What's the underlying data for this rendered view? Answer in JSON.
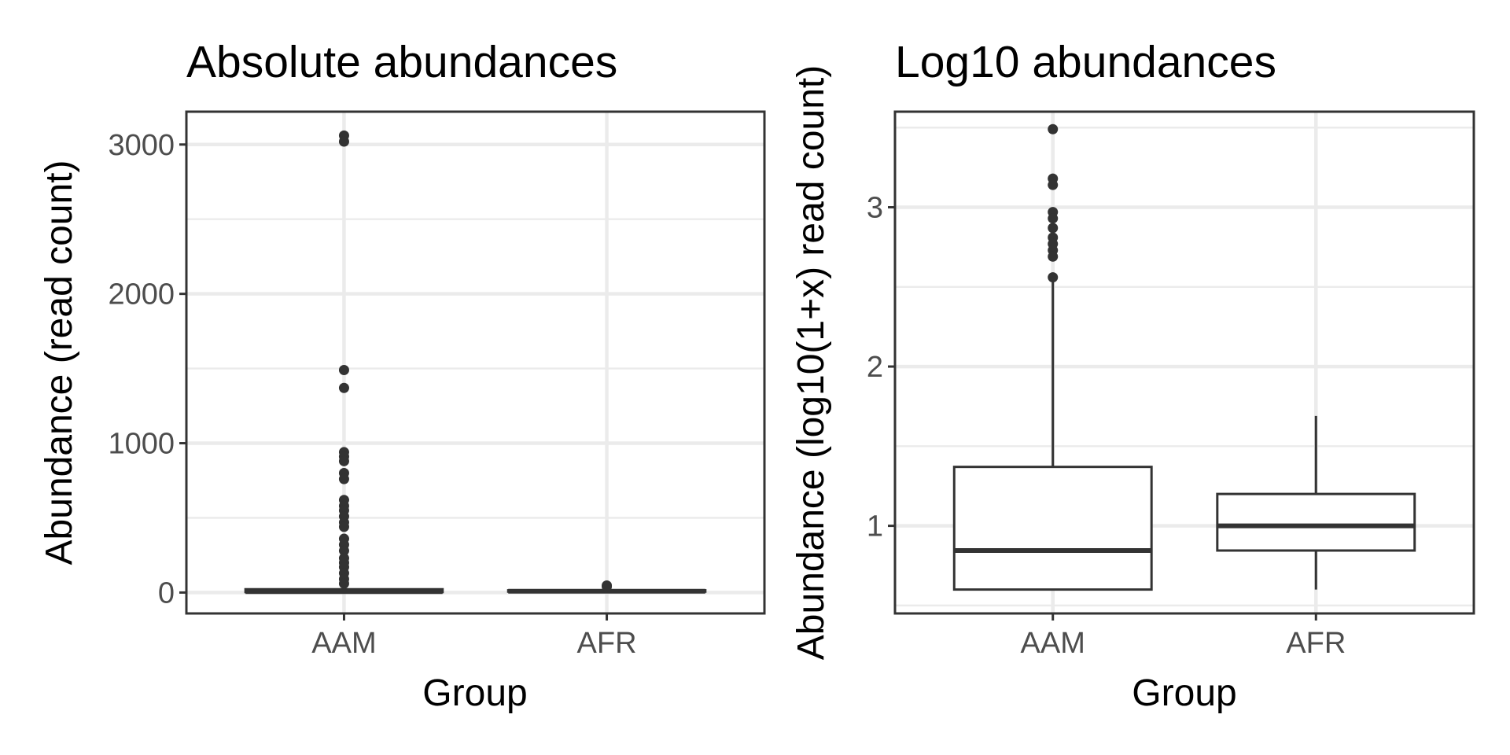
{
  "colors": {
    "background": "#ffffff",
    "grid": "#ebebeb",
    "axis_text": "#4d4d4d",
    "box": "#333333"
  },
  "chart_data": [
    {
      "type": "box",
      "title": "Absolute abundances",
      "xlabel": "Group",
      "ylabel": "Abundance (read count)",
      "categories": [
        "AAM",
        "AFR"
      ],
      "ylim": [
        -140,
        3220
      ],
      "yticks": [
        0,
        1000,
        2000,
        3000
      ],
      "ytick_labels": [
        "0",
        "1000",
        "2000",
        "3000"
      ],
      "grid": true,
      "boxes": [
        {
          "category": "AAM",
          "q1": 3,
          "median": 6,
          "q3": 22,
          "whisker_low": 0,
          "whisker_high": 50,
          "outliers": [
            3060,
            3020,
            1490,
            1370,
            940,
            910,
            880,
            800,
            760,
            620,
            580,
            550,
            510,
            470,
            440,
            360,
            320,
            280,
            230,
            200,
            170,
            130,
            90,
            60
          ]
        },
        {
          "category": "AFR",
          "q1": 6,
          "median": 9,
          "q3": 15,
          "whisker_low": 3,
          "whisker_high": 28,
          "outliers": [
            47,
            40
          ]
        }
      ]
    },
    {
      "type": "box",
      "title": "Log10 abundances",
      "xlabel": "Group",
      "ylabel": "Abundance (log10(1+x) read count)",
      "categories": [
        "AAM",
        "AFR"
      ],
      "ylim": [
        0.45,
        3.6
      ],
      "yticks": [
        1,
        2,
        3
      ],
      "ytick_labels": [
        "1",
        "2",
        "3"
      ],
      "grid": true,
      "boxes": [
        {
          "category": "AAM",
          "q1": 0.6,
          "median": 0.845,
          "q3": 1.37,
          "whisker_low": 0.6,
          "whisker_high": 2.53,
          "outliers": [
            3.49,
            3.18,
            3.14,
            2.97,
            2.93,
            2.87,
            2.81,
            2.77,
            2.73,
            2.69,
            2.56
          ]
        },
        {
          "category": "AFR",
          "q1": 0.845,
          "median": 1.0,
          "q3": 1.2,
          "whisker_low": 0.6,
          "whisker_high": 1.69,
          "outliers": []
        }
      ]
    }
  ]
}
